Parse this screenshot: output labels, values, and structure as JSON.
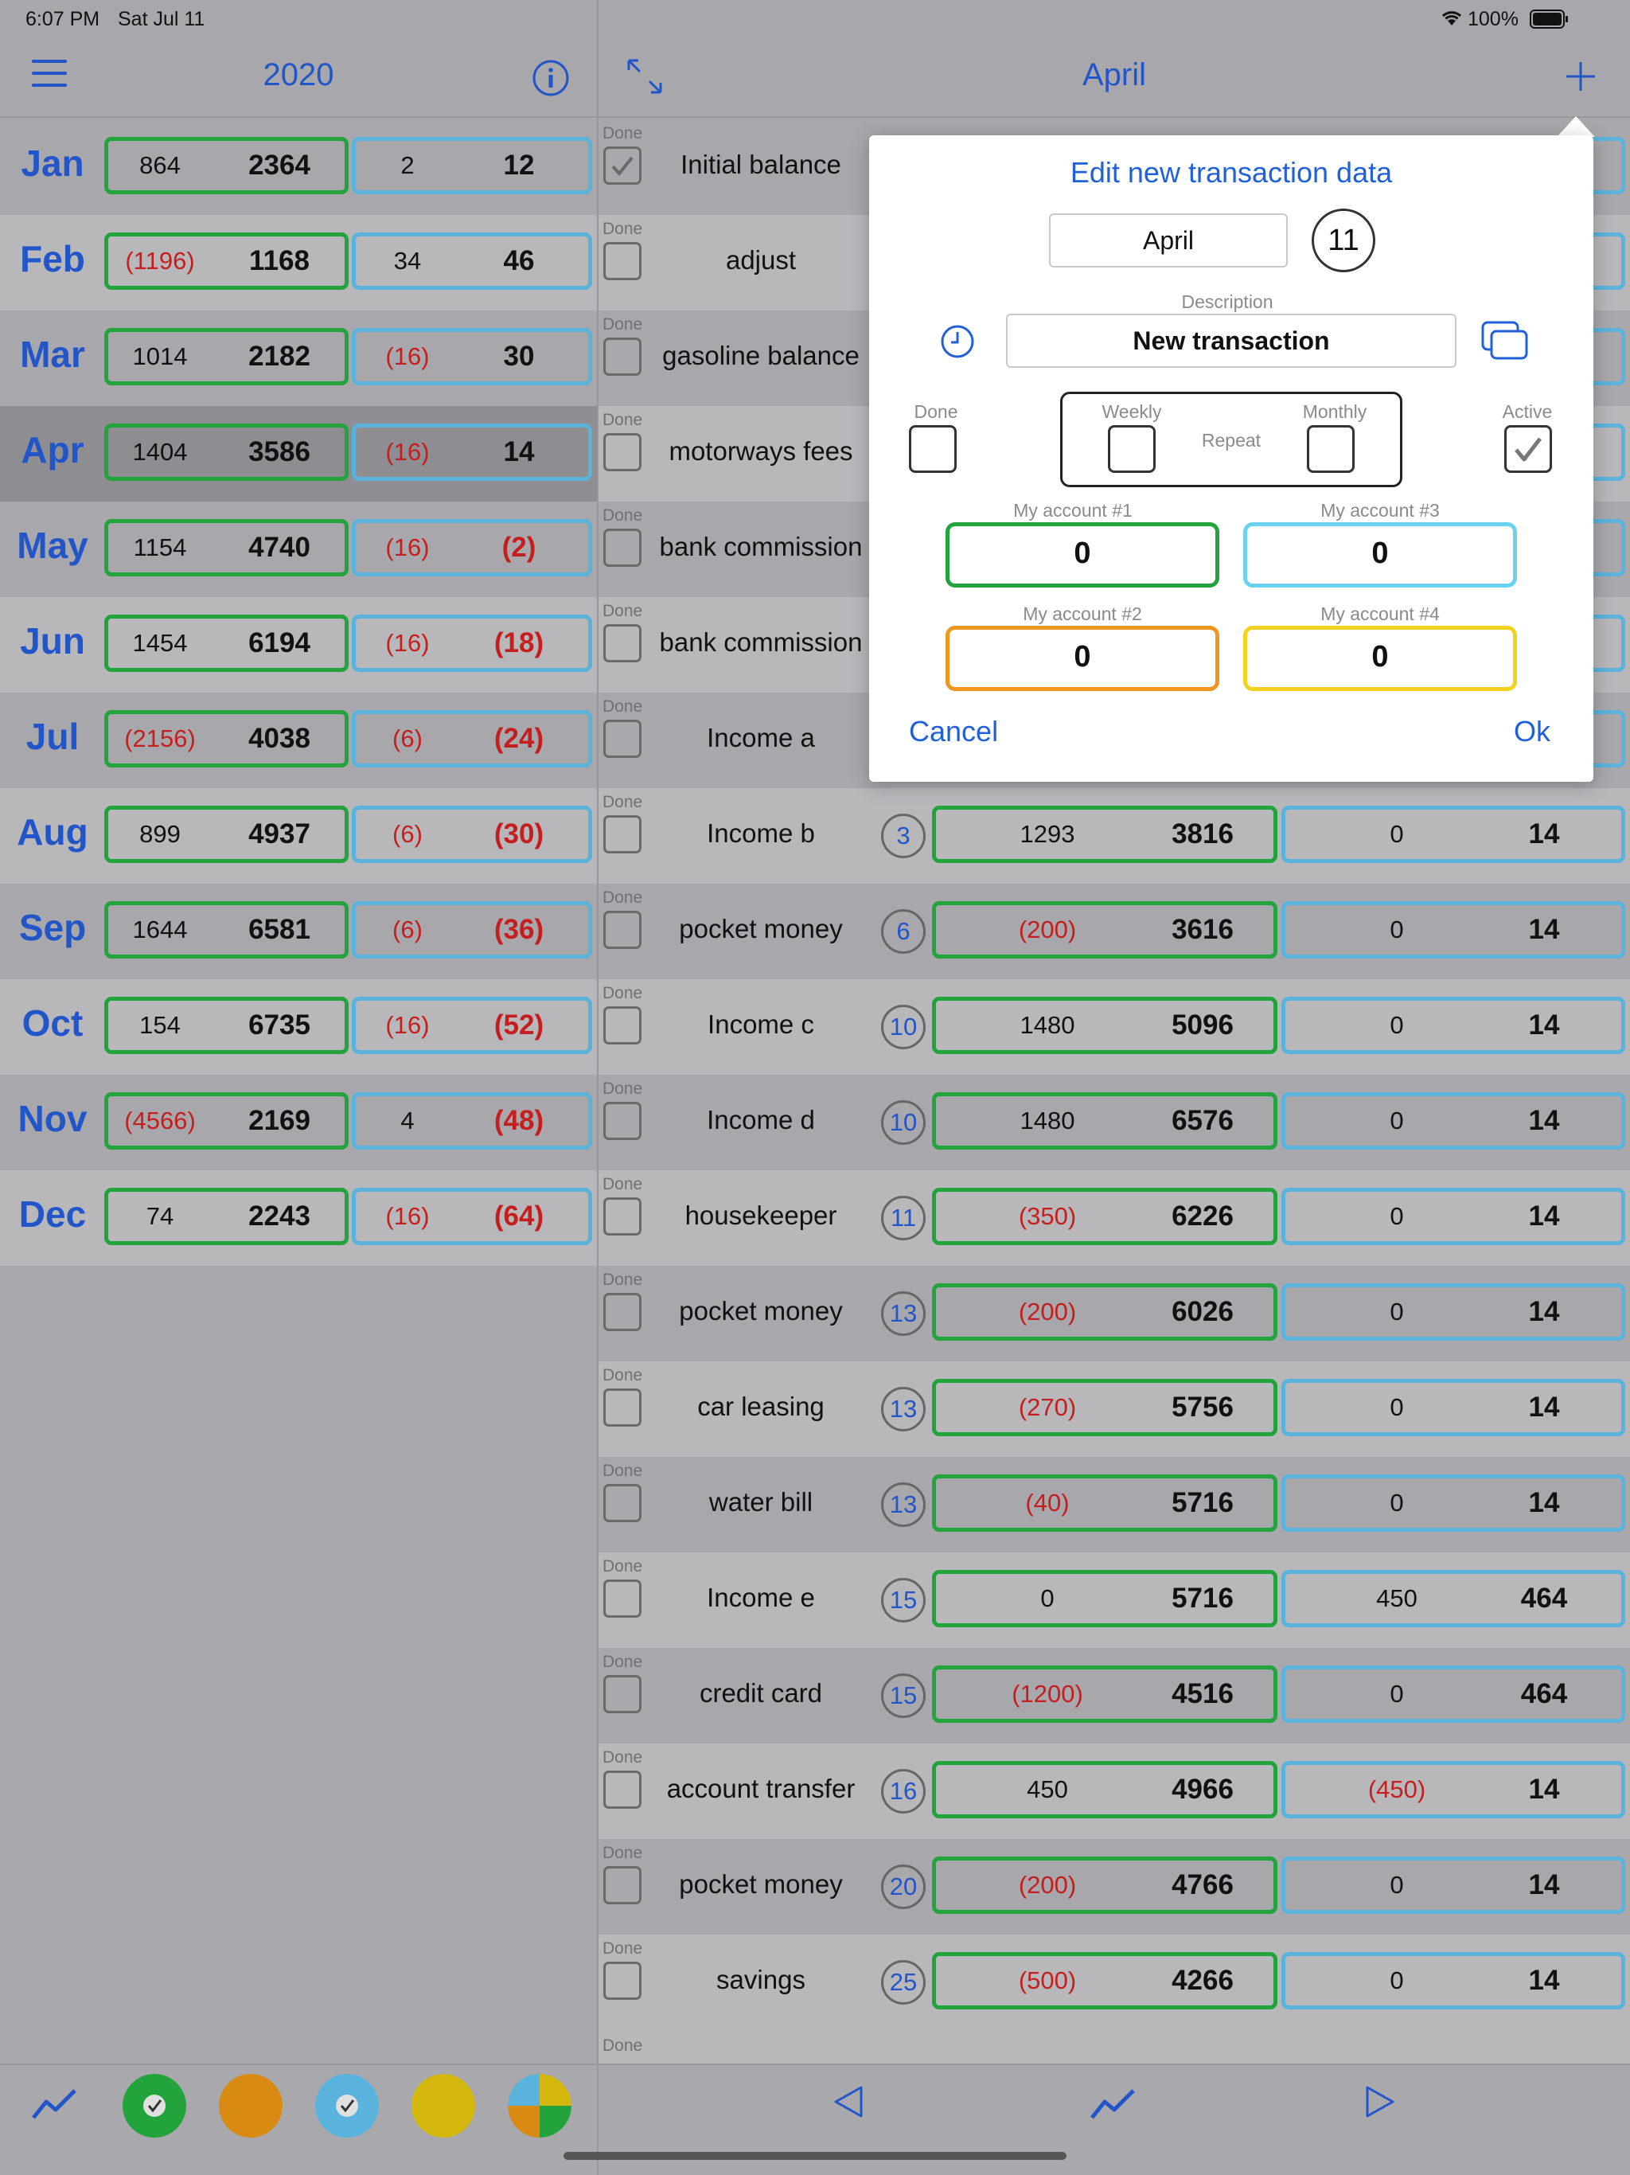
{
  "status_bar": {
    "time": "6:07 PM",
    "date": "Sat Jul 11",
    "battery": "100%"
  },
  "left_nav": {
    "title": "2020",
    "menu_icon": "hamburger-menu-icon",
    "info_icon": "info-icon"
  },
  "months": [
    {
      "label": "Jan",
      "a1": "864",
      "b1": "2364",
      "a2": "2",
      "b2": "12",
      "neg": [
        false,
        false,
        false,
        false
      ]
    },
    {
      "label": "Feb",
      "a1": "(1196)",
      "b1": "1168",
      "a2": "34",
      "b2": "46",
      "neg": [
        true,
        false,
        false,
        false
      ]
    },
    {
      "label": "Mar",
      "a1": "1014",
      "b1": "2182",
      "a2": "(16)",
      "b2": "30",
      "neg": [
        false,
        false,
        true,
        false
      ]
    },
    {
      "label": "Apr",
      "a1": "1404",
      "b1": "3586",
      "a2": "(16)",
      "b2": "14",
      "neg": [
        false,
        false,
        true,
        false
      ]
    },
    {
      "label": "May",
      "a1": "1154",
      "b1": "4740",
      "a2": "(16)",
      "b2": "(2)",
      "neg": [
        false,
        false,
        true,
        true
      ]
    },
    {
      "label": "Jun",
      "a1": "1454",
      "b1": "6194",
      "a2": "(16)",
      "b2": "(18)",
      "neg": [
        false,
        false,
        true,
        true
      ]
    },
    {
      "label": "Jul",
      "a1": "(2156)",
      "b1": "4038",
      "a2": "(6)",
      "b2": "(24)",
      "neg": [
        true,
        false,
        true,
        true
      ]
    },
    {
      "label": "Aug",
      "a1": "899",
      "b1": "4937",
      "a2": "(6)",
      "b2": "(30)",
      "neg": [
        false,
        false,
        true,
        true
      ]
    },
    {
      "label": "Sep",
      "a1": "1644",
      "b1": "6581",
      "a2": "(6)",
      "b2": "(36)",
      "neg": [
        false,
        false,
        true,
        true
      ]
    },
    {
      "label": "Oct",
      "a1": "154",
      "b1": "6735",
      "a2": "(16)",
      "b2": "(52)",
      "neg": [
        false,
        false,
        true,
        true
      ]
    },
    {
      "label": "Nov",
      "a1": "(4566)",
      "b1": "2169",
      "a2": "4",
      "b2": "(48)",
      "neg": [
        true,
        false,
        false,
        true
      ]
    },
    {
      "label": "Dec",
      "a1": "74",
      "b1": "2243",
      "a2": "(16)",
      "b2": "(64)",
      "neg": [
        false,
        false,
        true,
        true
      ]
    }
  ],
  "right_nav": {
    "title": "April",
    "expand_icon": "expand-arrows-icon",
    "add_icon": "plus-icon"
  },
  "done_label": "Done",
  "transactions": [
    {
      "desc": "Initial balance",
      "day": "",
      "a1": "",
      "b1": "",
      "a2": "",
      "b2": "",
      "checked": true
    },
    {
      "desc": "adjust",
      "day": "",
      "a1": "",
      "b1": "",
      "a2": "",
      "b2": "",
      "checked": false
    },
    {
      "desc": "gasoline balance",
      "day": "",
      "a1": "",
      "b1": "",
      "a2": "",
      "b2": "",
      "checked": false
    },
    {
      "desc": "motorways fees",
      "day": "",
      "a1": "",
      "b1": "",
      "a2": "",
      "b2": "",
      "checked": false
    },
    {
      "desc": "bank commission",
      "day": "",
      "a1": "",
      "b1": "",
      "a2": "",
      "b2": "",
      "checked": false
    },
    {
      "desc": "bank commission",
      "day": "",
      "a1": "",
      "b1": "",
      "a2": "",
      "b2": "",
      "checked": false
    },
    {
      "desc": "Income a",
      "day": "",
      "a1": "",
      "b1": "",
      "a2": "",
      "b2": "",
      "checked": false
    },
    {
      "desc": "Income b",
      "day": "3",
      "a1": "1293",
      "b1": "3816",
      "a2": "0",
      "b2": "14",
      "checked": false
    },
    {
      "desc": "pocket money",
      "day": "6",
      "a1": "(200)",
      "b1": "3616",
      "a2": "0",
      "b2": "14",
      "checked": false
    },
    {
      "desc": "Income c",
      "day": "10",
      "a1": "1480",
      "b1": "5096",
      "a2": "0",
      "b2": "14",
      "checked": false
    },
    {
      "desc": "Income d",
      "day": "10",
      "a1": "1480",
      "b1": "6576",
      "a2": "0",
      "b2": "14",
      "checked": false
    },
    {
      "desc": "housekeeper",
      "day": "11",
      "a1": "(350)",
      "b1": "6226",
      "a2": "0",
      "b2": "14",
      "checked": false
    },
    {
      "desc": "pocket money",
      "day": "13",
      "a1": "(200)",
      "b1": "6026",
      "a2": "0",
      "b2": "14",
      "checked": false
    },
    {
      "desc": "car leasing",
      "day": "13",
      "a1": "(270)",
      "b1": "5756",
      "a2": "0",
      "b2": "14",
      "checked": false
    },
    {
      "desc": "water bill",
      "day": "13",
      "a1": "(40)",
      "b1": "5716",
      "a2": "0",
      "b2": "14",
      "checked": false
    },
    {
      "desc": "Income e",
      "day": "15",
      "a1": "0",
      "b1": "5716",
      "a2": "450",
      "b2": "464",
      "checked": false
    },
    {
      "desc": "credit card",
      "day": "15",
      "a1": "(1200)",
      "b1": "4516",
      "a2": "0",
      "b2": "464",
      "checked": false
    },
    {
      "desc": "account transfer",
      "day": "16",
      "a1": "450",
      "b1": "4966",
      "a2": "(450)",
      "b2": "14",
      "checked": false
    },
    {
      "desc": "pocket money",
      "day": "20",
      "a1": "(200)",
      "b1": "4766",
      "a2": "0",
      "b2": "14",
      "checked": false
    },
    {
      "desc": "savings",
      "day": "25",
      "a1": "(500)",
      "b1": "4266",
      "a2": "0",
      "b2": "14",
      "checked": false
    }
  ],
  "modal": {
    "title": "Edit new transaction data",
    "month": "April",
    "day": "11",
    "description_label": "Description",
    "description_value": "New transaction",
    "done_label": "Done",
    "weekly_label": "Weekly",
    "repeat_label": "Repeat",
    "monthly_label": "Monthly",
    "active_label": "Active",
    "account1_label": "My account #1",
    "account1_value": "0",
    "account3_label": "My account #3",
    "account3_value": "0",
    "account2_label": "My account #2",
    "account2_value": "0",
    "account4_label": "My account #4",
    "account4_value": "0",
    "cancel_label": "Cancel",
    "ok_label": "Ok"
  },
  "colors": {
    "accent": "#2255c8",
    "green": "#23a33c",
    "blue": "#5ab3dd",
    "orange": "#f0961e",
    "yellow": "#f2d21e",
    "negative": "#c41e1e"
  }
}
